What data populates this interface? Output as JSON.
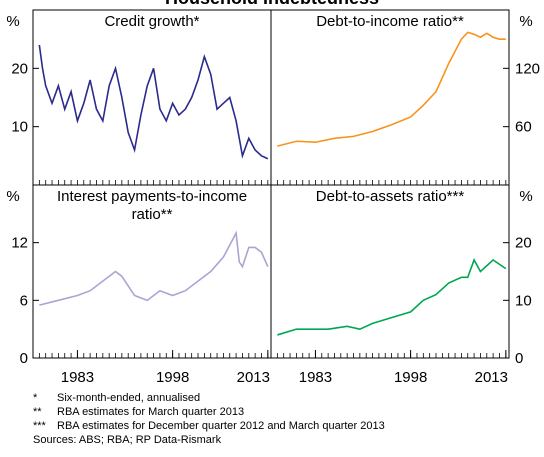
{
  "title": "Household Indebtedness",
  "chart_data": [
    {
      "type": "line",
      "title": "Credit growth*",
      "y_unit": "%",
      "axis_side": "left",
      "color": "#2b2a8e",
      "xlim": [
        1976,
        2013.5
      ],
      "ylim": [
        0,
        30
      ],
      "yticks": [
        10,
        20
      ],
      "x": [
        1977,
        1977.5,
        1978,
        1979,
        1980,
        1981,
        1982,
        1983,
        1984,
        1985,
        1986,
        1987,
        1988,
        1989,
        1990,
        1991,
        1992,
        1993,
        1994,
        1995,
        1996,
        1997,
        1998,
        1999,
        2000,
        2001,
        2002,
        2003,
        2004,
        2005,
        2006,
        2007,
        2008,
        2009,
        2010,
        2011,
        2012,
        2013
      ],
      "values": [
        24,
        20,
        17,
        14,
        17,
        13,
        16,
        11,
        14,
        18,
        13,
        11,
        17,
        20,
        15,
        9,
        6,
        12,
        17,
        20,
        13,
        11,
        14,
        12,
        13,
        15,
        18,
        22,
        19,
        13,
        14,
        15,
        11,
        5,
        8,
        6,
        5,
        4.5
      ]
    },
    {
      "type": "line",
      "title": "Debt-to-income ratio**",
      "y_unit": "%",
      "axis_side": "right",
      "color": "#f7941d",
      "xlim": [
        1976,
        2013.5
      ],
      "ylim": [
        0,
        180
      ],
      "yticks": [
        60,
        120
      ],
      "x": [
        1977,
        1980,
        1983,
        1986,
        1989,
        1992,
        1995,
        1998,
        2000,
        2002,
        2004,
        2006,
        2007,
        2008,
        2009,
        2010,
        2011,
        2012,
        2013
      ],
      "values": [
        40,
        45,
        44,
        48,
        50,
        55,
        62,
        70,
        82,
        96,
        125,
        150,
        157,
        155,
        152,
        156,
        152,
        150,
        150
      ]
    },
    {
      "type": "line",
      "title": "Interest payments-to-income ratio**",
      "y_unit": "%",
      "axis_side": "left",
      "color": "#a9a5d2",
      "xlim": [
        1976,
        2013.5
      ],
      "ylim": [
        0,
        18
      ],
      "yticks": [
        0,
        6,
        12
      ],
      "xticks": [
        1983,
        1998,
        2013
      ],
      "x": [
        1977,
        1980,
        1983,
        1985,
        1987,
        1989,
        1990,
        1992,
        1994,
        1996,
        1998,
        2000,
        2002,
        2004,
        2006,
        2008,
        2008.5,
        2009,
        2010,
        2011,
        2012,
        2013
      ],
      "values": [
        5.5,
        6,
        6.5,
        7,
        8,
        9,
        8.5,
        6.5,
        6,
        7,
        6.5,
        7,
        8,
        9,
        10.5,
        13,
        10,
        9.5,
        11.5,
        11.5,
        11,
        9.5
      ]
    },
    {
      "type": "line",
      "title": "Debt-to-assets ratio***",
      "y_unit": "%",
      "axis_side": "right",
      "color": "#00a651",
      "xlim": [
        1976,
        2013.5
      ],
      "ylim": [
        0,
        30
      ],
      "yticks": [
        0,
        10,
        20
      ],
      "xticks": [
        1983,
        1998,
        2013
      ],
      "x": [
        1977,
        1980,
        1985,
        1988,
        1990,
        1992,
        1995,
        1998,
        2000,
        2002,
        2004,
        2006,
        2007,
        2008,
        2009,
        2010,
        2011,
        2013
      ],
      "values": [
        4,
        5,
        5,
        5.5,
        5,
        6,
        7,
        8,
        10,
        11,
        13,
        14,
        14,
        17,
        15,
        16,
        17,
        15.5
      ]
    }
  ],
  "notes": [
    {
      "marker": "*",
      "text": "Six-month-ended, annualised"
    },
    {
      "marker": "**",
      "text": "RBA estimates for March quarter 2013"
    },
    {
      "marker": "***",
      "text": "RBA estimates for December quarter 2012 and March quarter 2013"
    }
  ],
  "sources": "Sources: ABS; RBA; RP Data-Rismark"
}
